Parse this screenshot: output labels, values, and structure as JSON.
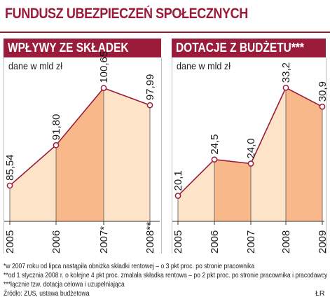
{
  "title": "FUNDUSZ UBEZPIECZEŃ SPOŁECZNYCH",
  "chart_data": [
    {
      "type": "area",
      "title": "WPŁYWY ZE SKŁADEK",
      "ylabel": "dane w mld zł",
      "categories": [
        "2005",
        "2006",
        "2007*",
        "2008**"
      ],
      "values": [
        85.54,
        91.8,
        100.65,
        97.99
      ],
      "value_labels": [
        "85,54",
        "91,80",
        "100,65",
        "97,99"
      ],
      "ylim": [
        80,
        103
      ],
      "grid": false
    },
    {
      "type": "area",
      "title": "DOTACJE Z BUDŻETU***",
      "ylabel": "dane w mld zł",
      "categories": [
        "2005",
        "2006",
        "2007",
        "2008",
        "2009"
      ],
      "values": [
        20.1,
        24.5,
        24.0,
        33.2,
        30.9
      ],
      "value_labels": [
        "20,1",
        "24,5",
        "24,0",
        "33,2",
        "30,9"
      ],
      "ylim": [
        17,
        35
      ],
      "grid": false
    }
  ],
  "footnotes": [
    "*w 2007 roku od lipca nastąpiła obniżka składki rentowej – o 3 pkt proc. po stronie pracownika",
    "**od 1 stycznia 2008 r. o kolejne 4 pkt proc. zmalała składka rentowa – po 2 pkt proc. po stronie pracownika i pracodawcy",
    "***łącznie tzw. dotacja celowa i uzupełniająca"
  ],
  "source": "Źródło: ZUS, ustawa budżetowa",
  "author": "ŁR",
  "colors": {
    "accent": "#9b1c3a",
    "fill_light": "#fde3c8",
    "fill_dark": "#f8b88a",
    "marker_fill": "#ffffff"
  }
}
